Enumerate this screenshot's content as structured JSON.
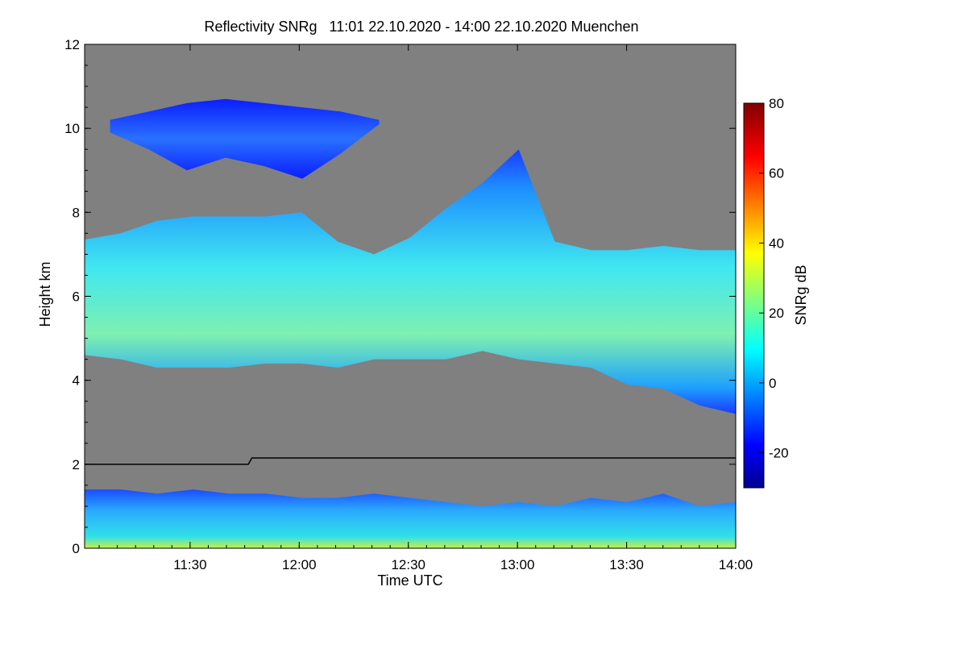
{
  "chart_data": {
    "type": "heatmap",
    "title": "Reflectivity SNRg   11:01 22.10.2020 - 14:00 22.10.2020 Muenchen",
    "xlabel": "Time UTC",
    "ylabel": "Height km",
    "xlim": [
      "11:01",
      "14:00"
    ],
    "ylim": [
      0,
      12
    ],
    "x_ticks": [
      "11:30",
      "12:00",
      "12:30",
      "13:00",
      "13:30",
      "14:00"
    ],
    "y_ticks": [
      0,
      2,
      4,
      6,
      8,
      10,
      12
    ],
    "background_color": "#808080",
    "colorbar": {
      "label": "SNRg dB",
      "range": [
        -30,
        80
      ],
      "ticks": [
        -20,
        0,
        20,
        40,
        60,
        80
      ],
      "colormap": "jet"
    },
    "reference_line": {
      "color": "#000000",
      "points": [
        [
          "11:01",
          2.0
        ],
        [
          "11:46",
          2.0
        ],
        [
          "11:47",
          2.15
        ],
        [
          "14:00",
          2.15
        ]
      ]
    },
    "layers": [
      {
        "name": "upper cloud",
        "x_range": [
          "11:01",
          "14:00"
        ],
        "top": [
          7.35,
          7.5,
          7.8,
          7.9,
          7.9,
          7.9,
          8.0,
          7.3,
          7.0,
          7.4,
          8.1,
          8.7,
          9.5,
          7.3,
          7.1,
          7.1,
          7.2,
          7.1,
          7.1
        ],
        "base": [
          4.6,
          4.5,
          4.3,
          4.3,
          4.3,
          4.4,
          4.4,
          4.3,
          4.5,
          4.5,
          4.5,
          4.7,
          4.5,
          4.4,
          4.3,
          3.9,
          3.8,
          3.4,
          3.2
        ]
      },
      {
        "name": "cirrus",
        "x_range": [
          "11:08",
          "12:22"
        ],
        "top": [
          10.2,
          10.4,
          10.6,
          10.7,
          10.6,
          10.5,
          10.4,
          10.2
        ],
        "base": [
          9.9,
          9.5,
          9.0,
          9.3,
          9.1,
          8.8,
          9.4,
          10.1
        ]
      },
      {
        "name": "boundary layer",
        "x_range": [
          "11:01",
          "14:00"
        ],
        "top": [
          1.4,
          1.4,
          1.3,
          1.4,
          1.3,
          1.3,
          1.2,
          1.2,
          1.3,
          1.2,
          1.1,
          1.0,
          1.1,
          1.0,
          1.2,
          1.1,
          1.3,
          1.0,
          1.1
        ],
        "base": [
          0.0,
          0.0,
          0.0,
          0.0,
          0.0,
          0.0,
          0.0,
          0.0,
          0.0,
          0.0,
          0.0,
          0.0,
          0.0,
          0.0,
          0.0,
          0.0,
          0.0,
          0.0,
          0.0
        ]
      }
    ]
  }
}
